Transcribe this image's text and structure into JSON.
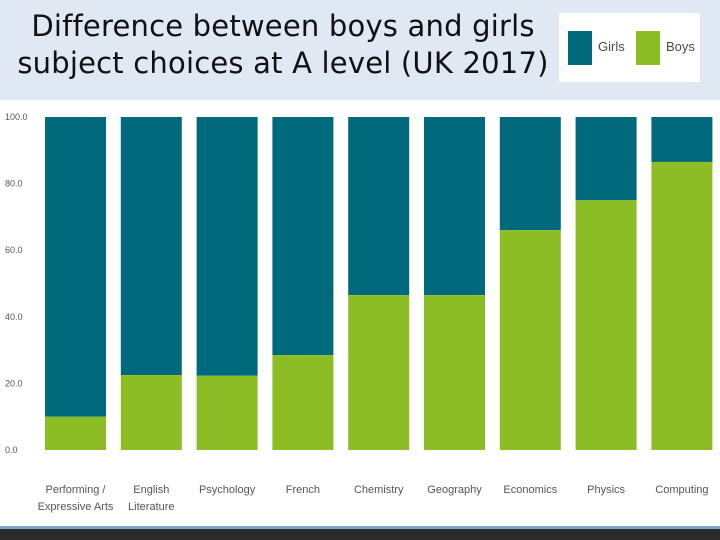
{
  "title_line1": "Difference between boys and girls",
  "title_line2": "subject choices at A level (UK 2017)",
  "colors": {
    "girls": "#006a7c",
    "boys": "#8dbd24",
    "tick_text": "#555555",
    "category_text": "#555555"
  },
  "chart_data": {
    "type": "bar",
    "stacked": true,
    "title": "Difference between boys and girls subject choices at A level (UK 2017)",
    "categories": [
      [
        "Performing /",
        "Expressive Arts"
      ],
      [
        "English",
        "Literature"
      ],
      [
        "Psychology"
      ],
      [
        "French"
      ],
      [
        "Chemistry"
      ],
      [
        "Geography"
      ],
      [
        "Economics"
      ],
      [
        "Physics"
      ],
      [
        "Computing"
      ]
    ],
    "series": [
      {
        "name": "Boys",
        "values": [
          10,
          22.5,
          22.3,
          28.5,
          46.5,
          46.5,
          66,
          75,
          86.5
        ]
      },
      {
        "name": "Girls",
        "values": [
          90,
          77.5,
          77.7,
          71.5,
          53.5,
          53.5,
          34,
          25,
          13.5
        ]
      }
    ],
    "yticks": [
      "0.0",
      "20.0",
      "40.0",
      "60.0",
      "80.0",
      "100.0"
    ],
    "ylim": [
      0,
      100
    ],
    "legend": {
      "position": "top-right",
      "items": [
        "Girls",
        "Boys"
      ]
    },
    "grid": false
  }
}
